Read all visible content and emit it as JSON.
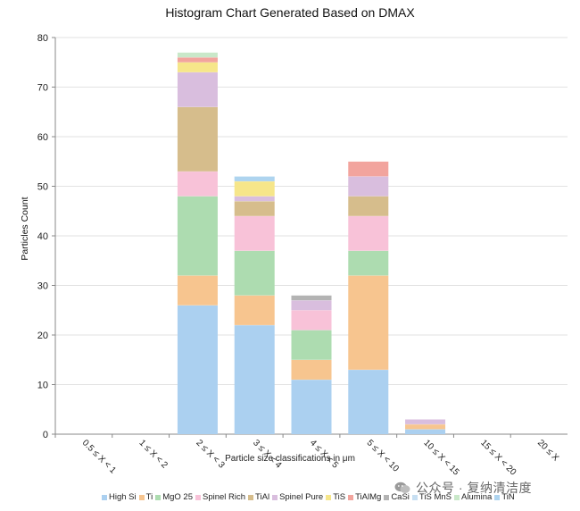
{
  "chart_data": {
    "type": "bar",
    "stacked": true,
    "title": "Histogram Chart Generated Based on DMAX",
    "xlabel": "Particle size classifications in μm",
    "ylabel": "Particles Count",
    "ylim": [
      0,
      80
    ],
    "yticks": [
      0,
      10,
      20,
      30,
      40,
      50,
      60,
      70,
      80
    ],
    "grid": true,
    "legend_position": "bottom",
    "categories": [
      "0.5 ≤ X < 1",
      "1 ≤ X < 2",
      "2 ≤ X < 3",
      "3 ≤ X < 4",
      "4 ≤ X < 5",
      "5 ≤ X < 10",
      "10 ≤ X < 15",
      "15 ≤ X < 20",
      "20 ≤ X"
    ],
    "series": [
      {
        "name": "High Si",
        "color": "#abd0f0",
        "values": [
          0,
          0,
          26,
          22,
          11,
          13,
          1,
          0,
          0
        ]
      },
      {
        "name": "Ti",
        "color": "#f7c58f",
        "values": [
          0,
          0,
          6,
          6,
          4,
          19,
          1,
          0,
          0
        ]
      },
      {
        "name": "MgO 25",
        "color": "#addcb0",
        "values": [
          0,
          0,
          16,
          9,
          6,
          5,
          0,
          0,
          0
        ]
      },
      {
        "name": "Spinel Rich",
        "color": "#f8c2d8",
        "values": [
          0,
          0,
          5,
          7,
          4,
          7,
          0,
          0,
          0
        ]
      },
      {
        "name": "TiAl",
        "color": "#d6bd8c",
        "values": [
          0,
          0,
          13,
          3,
          0,
          4,
          0,
          0,
          0
        ]
      },
      {
        "name": "Spinel Pure",
        "color": "#d9bede",
        "values": [
          0,
          0,
          7,
          1,
          2,
          4,
          1,
          0,
          0
        ]
      },
      {
        "name": "TiS",
        "color": "#f6e68a",
        "values": [
          0,
          0,
          2,
          3,
          0,
          0,
          0,
          0,
          0
        ]
      },
      {
        "name": "TiAlMg",
        "color": "#f2a49d",
        "values": [
          0,
          0,
          1,
          0,
          0,
          3,
          0,
          0,
          0
        ]
      },
      {
        "name": "CaSi",
        "color": "#b3b3b3",
        "values": [
          0,
          0,
          0,
          0,
          1,
          0,
          0,
          0,
          0
        ]
      },
      {
        "name": "TiS MnS",
        "color": "#c7dff2",
        "values": [
          0,
          0,
          0,
          0,
          0,
          0,
          0,
          0,
          0
        ]
      },
      {
        "name": "Alumina",
        "color": "#c9e8c9",
        "values": [
          0,
          0,
          1,
          0,
          0,
          0,
          0,
          0,
          0
        ]
      },
      {
        "name": "TiN",
        "color": "#aed4ef",
        "values": [
          0,
          0,
          0,
          1,
          0,
          0,
          0,
          0,
          0
        ]
      }
    ]
  },
  "watermark": {
    "text": "公众号 · 复纳清洁度"
  }
}
